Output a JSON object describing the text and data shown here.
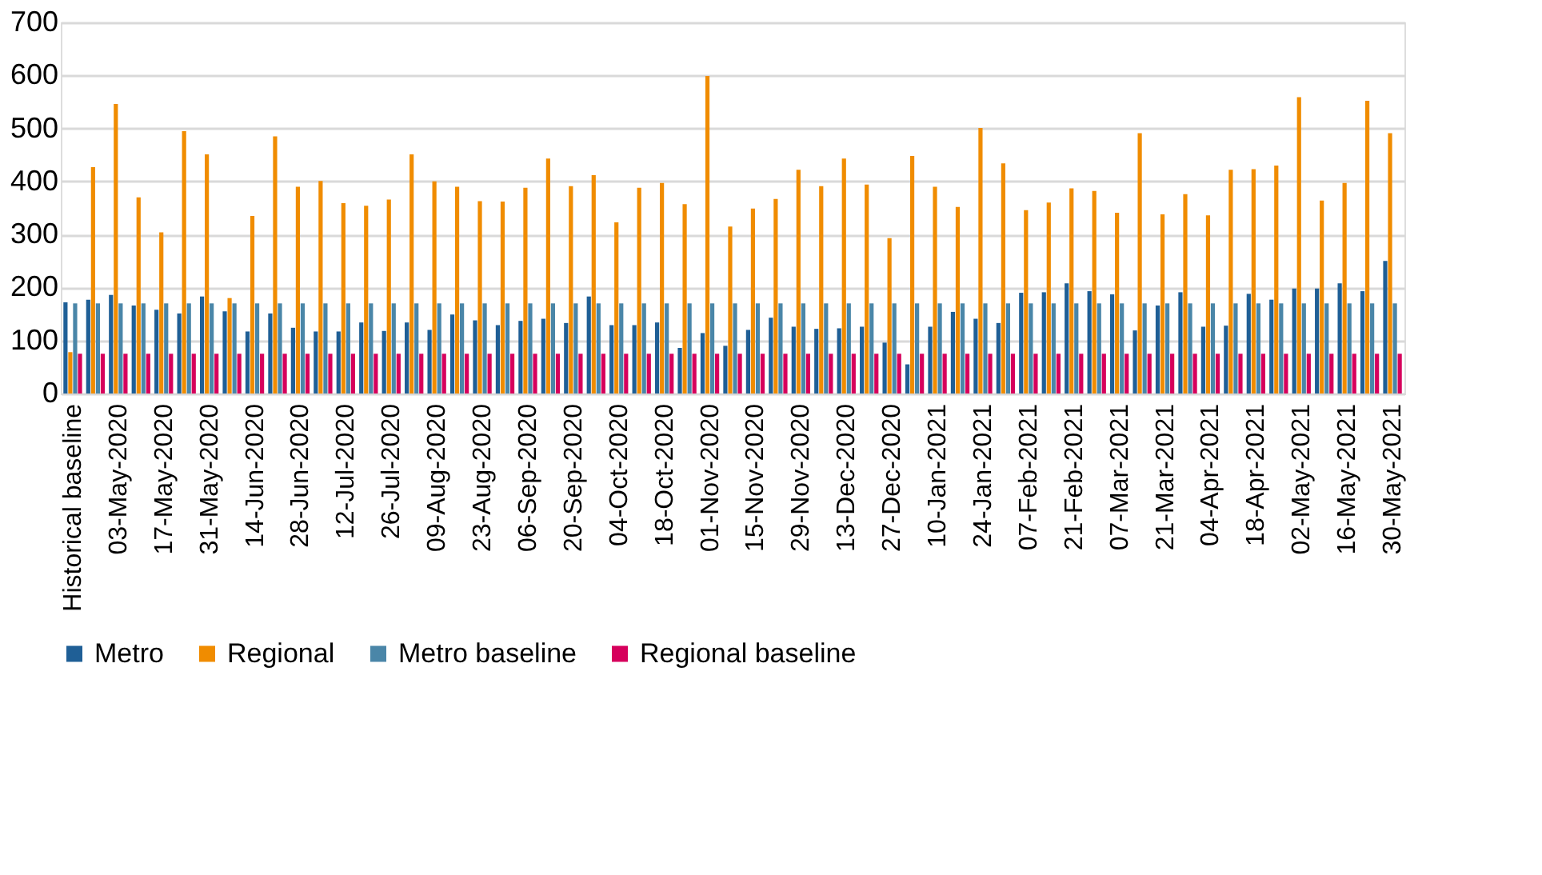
{
  "chart_data": {
    "type": "bar",
    "categories": [
      "Historical baseline",
      null,
      "03-May-2020",
      null,
      "17-May-2020",
      null,
      "31-May-2020",
      null,
      "14-Jun-2020",
      null,
      "28-Jun-2020",
      null,
      "12-Jul-2020",
      null,
      "26-Jul-2020",
      null,
      "09-Aug-2020",
      null,
      "23-Aug-2020",
      null,
      "06-Sep-2020",
      null,
      "20-Sep-2020",
      null,
      "04-Oct-2020",
      null,
      "18-Oct-2020",
      null,
      "01-Nov-2020",
      null,
      "15-Nov-2020",
      null,
      "29-Nov-2020",
      null,
      "13-Dec-2020",
      null,
      "27-Dec-2020",
      null,
      "10-Jan-2021",
      null,
      "24-Jan-2021",
      null,
      "07-Feb-2021",
      null,
      "21-Feb-2021",
      null,
      "07-Mar-2021",
      null,
      "21-Mar-2021",
      null,
      "04-Apr-2021",
      null,
      "18-Apr-2021",
      null,
      "02-May-2021",
      null,
      "16-May-2021",
      null,
      "30-May-2021"
    ],
    "series": [
      {
        "name": "Metro",
        "color": "#1f5f96",
        "values": [
          172,
          177,
          186,
          166,
          158,
          151,
          183,
          155,
          117,
          151,
          124,
          117,
          117,
          134,
          118,
          134,
          120,
          149,
          138,
          129,
          137,
          141,
          133,
          183,
          129,
          129,
          134,
          86,
          114,
          90,
          120,
          143,
          126,
          122,
          123,
          126,
          96,
          55,
          126,
          154,
          141,
          133,
          190,
          191,
          208,
          193,
          187,
          119,
          166,
          191,
          126,
          128,
          188,
          177,
          198,
          198,
          208,
          193,
          250
        ]
      },
      {
        "name": "Regional",
        "color": "#f08c00",
        "values": [
          78,
          427,
          546,
          370,
          304,
          495,
          451,
          180,
          335,
          485,
          390,
          401,
          359,
          354,
          366,
          451,
          400,
          390,
          363,
          362,
          388,
          443,
          391,
          412,
          323,
          388,
          397,
          357,
          599,
          315,
          349,
          367,
          422,
          391,
          443,
          394,
          293,
          448,
          390,
          352,
          501,
          434,
          346,
          360,
          387,
          382,
          341,
          491,
          338,
          376,
          336,
          422,
          423,
          430,
          559,
          364,
          397,
          552,
          491
        ]
      },
      {
        "name": "Metro baseline",
        "color": "#4a86a8",
        "values": [
          170,
          170,
          170,
          170,
          170,
          170,
          170,
          170,
          170,
          170,
          170,
          170,
          170,
          170,
          170,
          170,
          170,
          170,
          170,
          170,
          170,
          170,
          170,
          170,
          170,
          170,
          170,
          170,
          170,
          170,
          170,
          170,
          170,
          170,
          170,
          170,
          170,
          170,
          170,
          170,
          170,
          170,
          170,
          170,
          170,
          170,
          170,
          170,
          170,
          170,
          170,
          170,
          170,
          170,
          170,
          170,
          170,
          170,
          170
        ]
      },
      {
        "name": "Regional baseline",
        "color": "#d6005c",
        "values": [
          75,
          75,
          75,
          75,
          75,
          75,
          75,
          75,
          75,
          75,
          75,
          75,
          75,
          75,
          75,
          75,
          75,
          75,
          75,
          75,
          75,
          75,
          75,
          75,
          75,
          75,
          75,
          75,
          75,
          75,
          75,
          75,
          75,
          75,
          75,
          75,
          75,
          75,
          75,
          75,
          75,
          75,
          75,
          75,
          75,
          75,
          75,
          75,
          75,
          75,
          75,
          75,
          75,
          75,
          75,
          75,
          75,
          75,
          75
        ]
      }
    ],
    "ylim": [
      0,
      700
    ],
    "yticks": [
      0,
      100,
      200,
      300,
      400,
      500,
      600,
      700
    ],
    "grid": "y",
    "legend": "bottom"
  }
}
